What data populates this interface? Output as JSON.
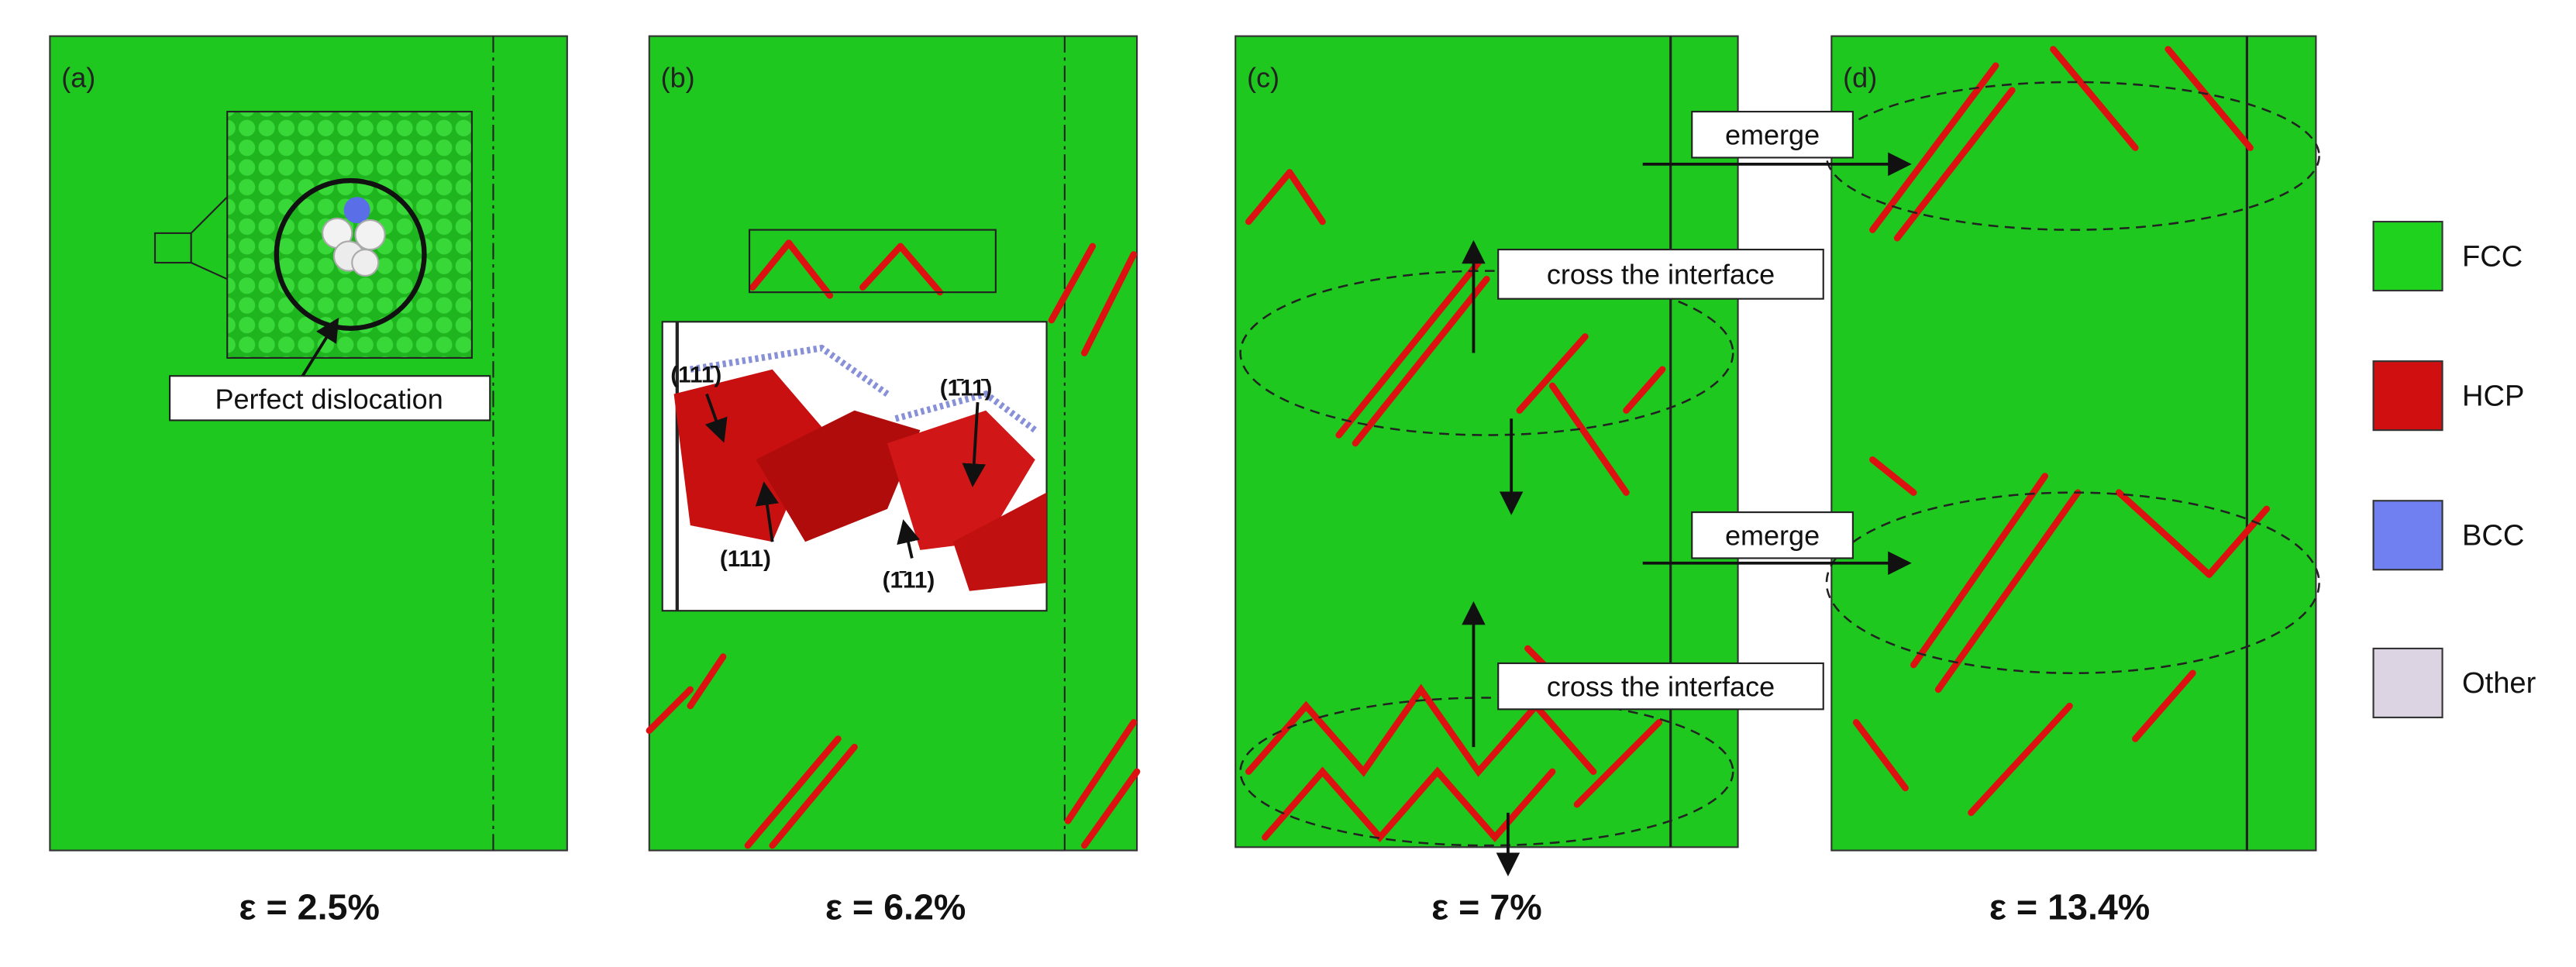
{
  "panels": [
    {
      "label": "(a)",
      "strain": "ε = 2.5%",
      "annotations": [
        "Perfect dislocation"
      ]
    },
    {
      "label": "(b)",
      "strain": "ε = 6.2%",
      "annotations": [
        "(111̄)",
        "(1̄11̄)",
        "(111)",
        "(1̄11)"
      ]
    },
    {
      "label": "(c)",
      "strain": "ε = 7%",
      "annotations": [
        "cross the interface",
        "cross the interface"
      ]
    },
    {
      "label": "(d)",
      "strain": "ε = 13.4%",
      "annotations": [
        "emerge",
        "emerge"
      ]
    }
  ],
  "legend": [
    {
      "label": "FCC",
      "color": "#1ed21e"
    },
    {
      "label": "HCP",
      "color": "#d01010"
    },
    {
      "label": "BCC",
      "color": "#7080f0"
    },
    {
      "label": "Other",
      "color": "#dcd4e2"
    }
  ]
}
